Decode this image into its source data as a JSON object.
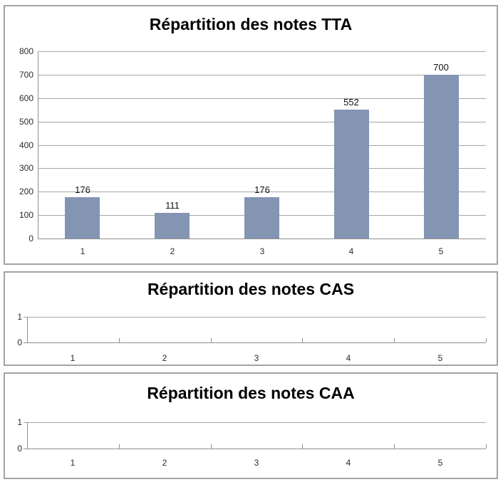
{
  "colors": {
    "bar": "#8494b3",
    "gridline": "#a6a6a6",
    "axis": "#8f8f8f",
    "box_border": "#a3a3a3",
    "title_text": "#000000",
    "label_text": "#2b2b2b"
  },
  "chart_data": [
    {
      "type": "bar",
      "title": "Répartition des notes TTA",
      "categories": [
        "1",
        "2",
        "3",
        "4",
        "5"
      ],
      "values": [
        176,
        111,
        176,
        552,
        700
      ],
      "data_labels": [
        "176",
        "111",
        "176",
        "552",
        "700"
      ],
      "xlabel": "",
      "ylabel": "",
      "ylim": [
        0,
        800
      ],
      "ytick_labels": [
        "800",
        "700",
        "600",
        "500",
        "400",
        "300",
        "200",
        "100",
        "0"
      ],
      "grid": true,
      "legend": false,
      "bar_color": "#8494b3"
    },
    {
      "type": "bar",
      "title": "Répartition des notes CAS",
      "categories": [
        "1",
        "2",
        "3",
        "4",
        "5"
      ],
      "values": [],
      "data_labels": [],
      "xlabel": "",
      "ylabel": "",
      "ylim": [
        0,
        1
      ],
      "ytick_labels": [
        "1",
        "0"
      ],
      "grid": true,
      "legend": false
    },
    {
      "type": "bar",
      "title": "Répartition des notes CAA",
      "categories": [
        "1",
        "2",
        "3",
        "4",
        "5"
      ],
      "values": [],
      "data_labels": [],
      "xlabel": "",
      "ylabel": "",
      "ylim": [
        0,
        1
      ],
      "ytick_labels": [
        "1",
        "0"
      ],
      "grid": true,
      "legend": false
    }
  ]
}
